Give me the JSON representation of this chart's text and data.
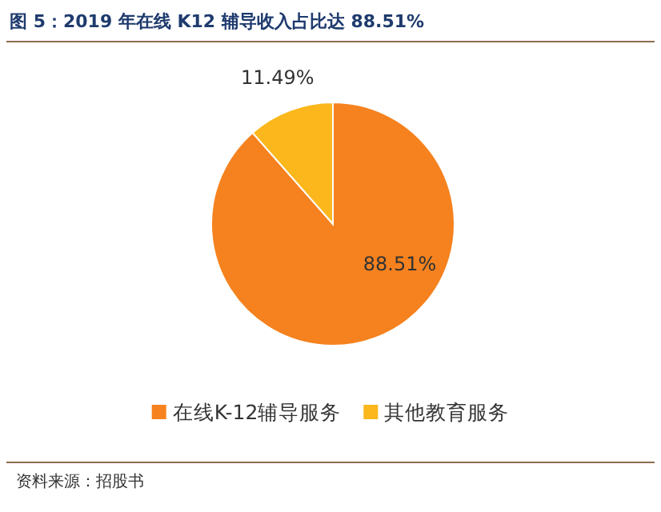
{
  "chart_data": {
    "type": "pie",
    "title": "图 5：2019 年在线 K12 辅导收入占比达 88.51%",
    "categories": [
      "在线K-12辅导服务",
      "其他教育服务"
    ],
    "values": [
      88.51,
      11.49
    ],
    "colors": [
      "#f5821f",
      "#fbb71c"
    ],
    "value_labels": [
      "88.51%",
      "11.49%"
    ],
    "legend": "bottom",
    "annotations": [
      "资料来源：招股书"
    ]
  }
}
